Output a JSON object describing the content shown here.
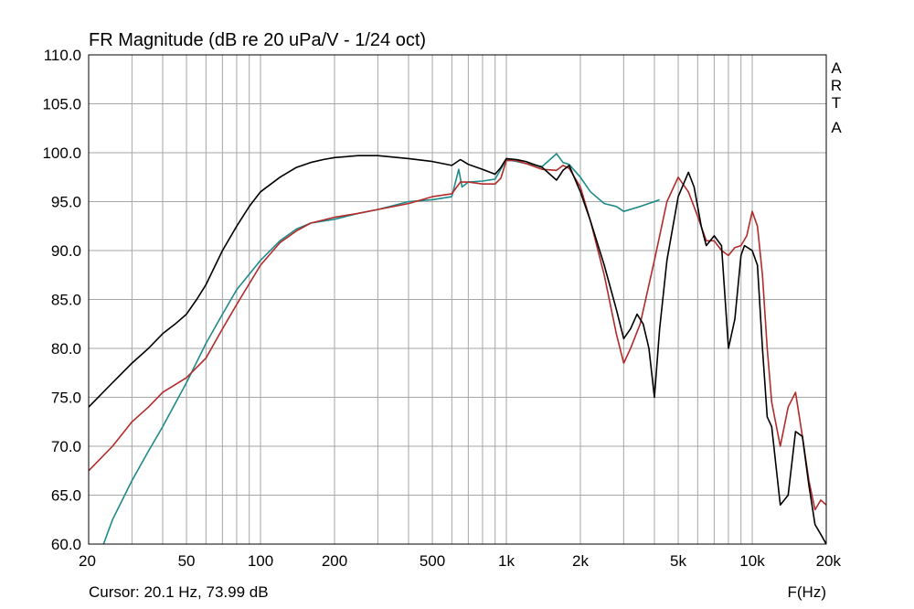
{
  "chart_data": {
    "type": "line",
    "title": "FR Magnitude (dB re 20 uPa/V - 1/24 oct)",
    "xlabel": "F(Hz)",
    "ylabel": "",
    "x_scale": "log",
    "xlim": [
      20,
      20000
    ],
    "ylim": [
      60,
      110
    ],
    "grid": true,
    "x_tick_values": [
      20,
      50,
      100,
      200,
      500,
      1000,
      2000,
      5000,
      10000,
      20000
    ],
    "x_tick_labels": [
      "20",
      "50",
      "100",
      "200",
      "500",
      "1k",
      "2k",
      "5k",
      "10k",
      "20k"
    ],
    "y_tick_values": [
      60,
      65,
      70,
      75,
      80,
      85,
      90,
      95,
      100,
      105,
      110
    ],
    "y_tick_labels": [
      "60.0",
      "65.0",
      "70.0",
      "75.0",
      "80.0",
      "85.0",
      "90.0",
      "95.0",
      "100.0",
      "105.0",
      "110.0"
    ],
    "series": [
      {
        "color": "#000000",
        "x": [
          20,
          25,
          30,
          35,
          40,
          45,
          50,
          55,
          60,
          70,
          80,
          90,
          100,
          120,
          140,
          160,
          180,
          200,
          250,
          300,
          400,
          500,
          600,
          650,
          700,
          800,
          900,
          950,
          1000,
          1100,
          1200,
          1400,
          1600,
          1700,
          1800,
          2000,
          2200,
          2500,
          2800,
          3000,
          3200,
          3400,
          3600,
          3800,
          4000,
          4200,
          4500,
          5000,
          5500,
          5800,
          6200,
          6500,
          7000,
          7500,
          8000,
          8500,
          9000,
          9300,
          10000,
          10500,
          11000,
          11500,
          12000,
          13000,
          14000,
          15000,
          16000,
          17000,
          18000,
          19000,
          20000
        ],
        "y": [
          74,
          76.5,
          78.5,
          80,
          81.5,
          82.5,
          83.5,
          85,
          86.5,
          90,
          92.5,
          94.5,
          96,
          97.5,
          98.5,
          99,
          99.3,
          99.5,
          99.7,
          99.7,
          99.4,
          99.1,
          98.7,
          99.3,
          98.8,
          98.3,
          97.8,
          98.5,
          99.4,
          99.3,
          99.1,
          98.5,
          97.2,
          98.2,
          98.7,
          96,
          93,
          88.5,
          84,
          81,
          82,
          83.5,
          82.5,
          80,
          75,
          82,
          89,
          95.5,
          98,
          96.5,
          92.5,
          90.5,
          91.5,
          90.5,
          80,
          83,
          89.5,
          90.5,
          90,
          88.5,
          80,
          73,
          72,
          64,
          65,
          71.5,
          71,
          66,
          62,
          61,
          60
        ]
      },
      {
        "color": "#1f8a8a",
        "x": [
          23,
          25,
          30,
          35,
          40,
          50,
          60,
          70,
          80,
          100,
          120,
          140,
          160,
          200,
          250,
          300,
          400,
          500,
          600,
          640,
          660,
          700,
          800,
          900,
          1000,
          1100,
          1200,
          1400,
          1600,
          1700,
          1800,
          2000,
          2200,
          2500,
          2800,
          3000,
          3500,
          4000,
          4200
        ],
        "y": [
          60,
          62.5,
          66.5,
          69.5,
          72,
          76.5,
          80.5,
          83.5,
          86,
          89,
          91,
          92.2,
          92.8,
          93.2,
          93.8,
          94.2,
          95,
          95.2,
          95.5,
          98.3,
          96.5,
          97,
          97.1,
          97.3,
          99.3,
          99.1,
          98.9,
          98.6,
          99.9,
          99,
          98.8,
          97.5,
          96,
          94.8,
          94.5,
          94,
          94.5,
          95,
          95.2
        ]
      },
      {
        "color": "#b22a2a",
        "x": [
          20,
          25,
          30,
          35,
          40,
          50,
          60,
          70,
          80,
          100,
          120,
          140,
          160,
          200,
          250,
          300,
          400,
          500,
          600,
          650,
          700,
          800,
          900,
          950,
          1000,
          1100,
          1200,
          1400,
          1600,
          1700,
          1800,
          2000,
          2200,
          2500,
          2800,
          3000,
          3200,
          3500,
          4000,
          4500,
          5000,
          5500,
          6000,
          6500,
          7000,
          7500,
          8000,
          8500,
          9000,
          9500,
          10000,
          10500,
          11000,
          11500,
          12000,
          13000,
          14000,
          15000,
          16000,
          17000,
          18000,
          19000,
          20000
        ],
        "y": [
          67.5,
          70,
          72.5,
          74,
          75.5,
          77,
          79,
          82,
          84.5,
          88.5,
          90.8,
          92,
          92.8,
          93.4,
          93.8,
          94.2,
          94.8,
          95.5,
          95.8,
          97,
          97,
          96.8,
          96.8,
          97.4,
          99.2,
          99.2,
          98.9,
          98.3,
          98.2,
          98.7,
          98.4,
          96.5,
          93,
          87.5,
          81.5,
          78.5,
          80,
          82.5,
          89,
          95,
          97.5,
          96,
          93.5,
          91,
          91,
          90,
          89.5,
          90.3,
          90.5,
          91.5,
          94,
          92.5,
          87.5,
          80,
          74.5,
          70,
          74,
          75.5,
          71,
          66.5,
          63.5,
          64.5,
          64
        ]
      }
    ]
  },
  "labels": {
    "brand_letters": [
      "A",
      "R",
      "T",
      "A"
    ],
    "cursor": "Cursor: 20.1 Hz, 73.99 dB"
  }
}
